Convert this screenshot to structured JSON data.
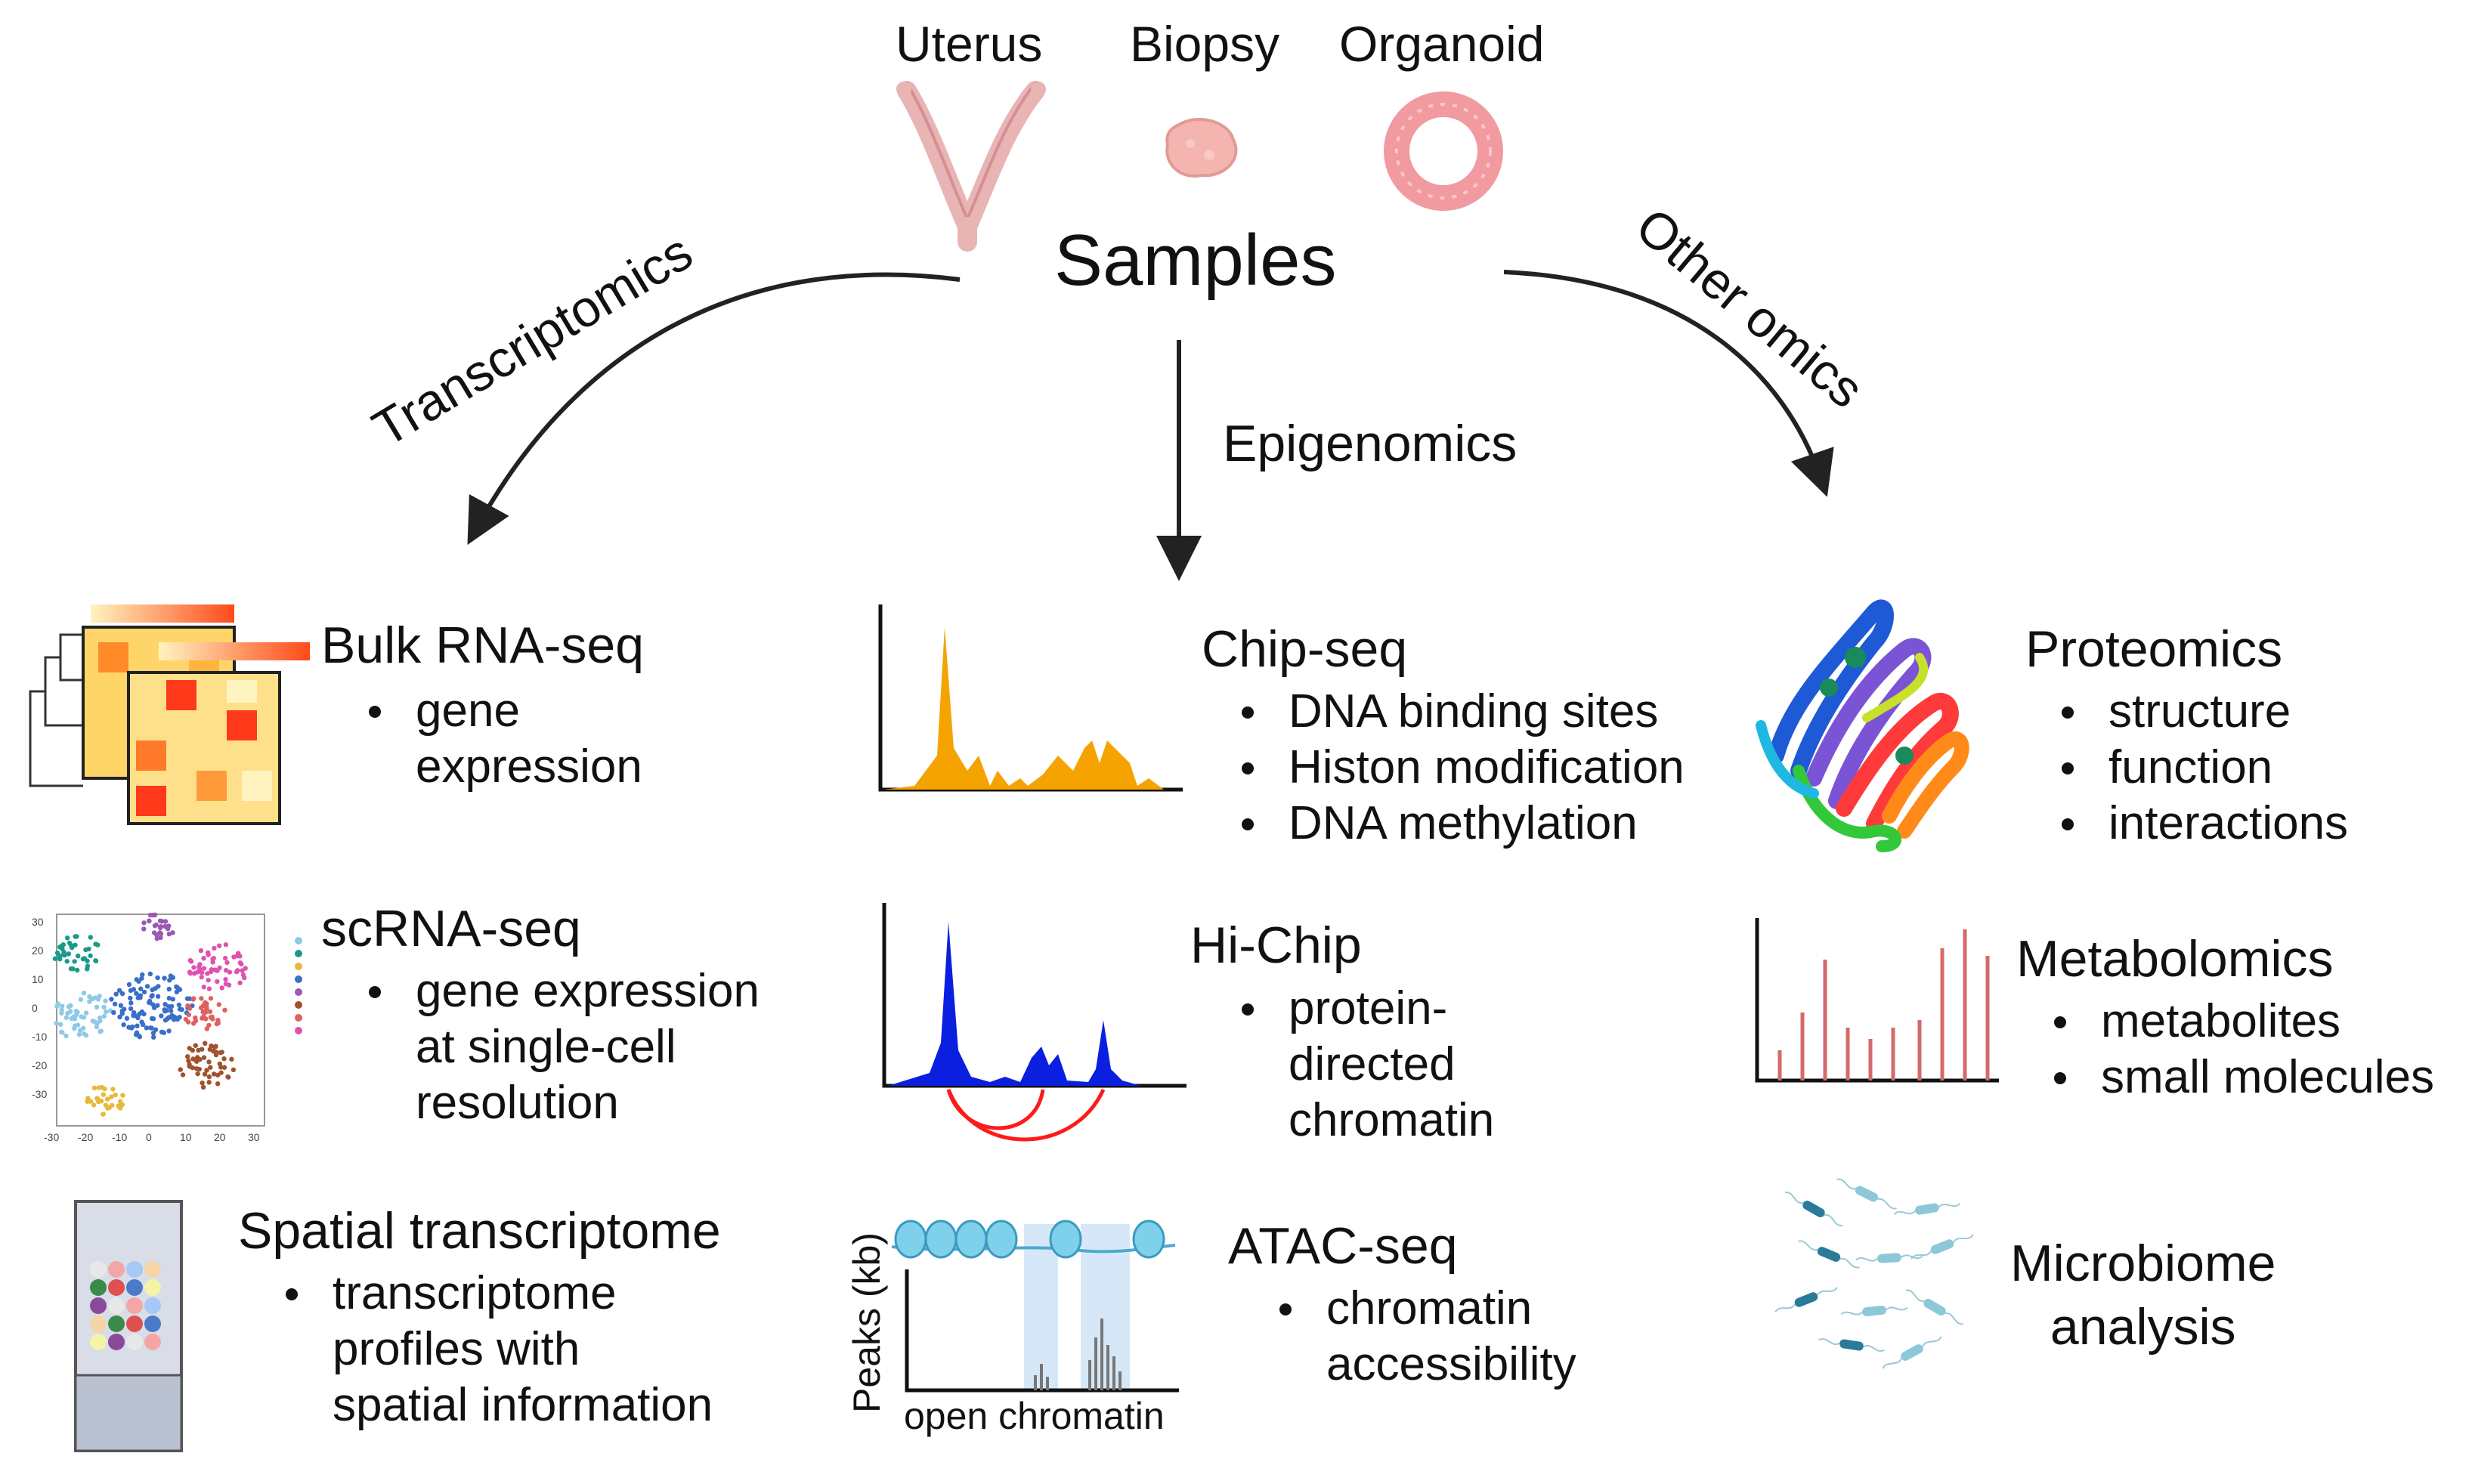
{
  "samples": {
    "title": "Samples",
    "items": [
      {
        "label": "Uterus"
      },
      {
        "label": "Biopsy"
      },
      {
        "label": "Organoid"
      }
    ]
  },
  "branches": {
    "left": "Transcriptomics",
    "center": "Epigenomics",
    "right": "Other omics"
  },
  "transcriptomics": [
    {
      "title": "Bulk RNA-seq",
      "bullets": [
        "gene\nexpression"
      ]
    },
    {
      "title": "scRNA-seq",
      "bullets": [
        "gene expression\nat single-cell\nresolution"
      ]
    },
    {
      "title": "Spatial transcriptome",
      "bullets": [
        "transcriptome\nprofiles with\nspatial information"
      ]
    }
  ],
  "epigenomics": [
    {
      "title": "Chip-seq",
      "bullets": [
        "DNA binding sites",
        "Histon modification",
        "DNA methylation"
      ]
    },
    {
      "title": "Hi-Chip",
      "bullets": [
        "protein-\ndirected\nchromatin"
      ]
    },
    {
      "title": "ATAC-seq",
      "bullets": [
        "chromatin\naccessibility"
      ]
    }
  ],
  "other_omics": [
    {
      "title": "Proteomics",
      "bullets": [
        "structure",
        "function",
        "interactions"
      ]
    },
    {
      "title": "Metabolomics",
      "bullets": [
        "metabolites",
        "small molecules"
      ]
    },
    {
      "title": "Microbiome\nanalysis",
      "bullets": []
    }
  ],
  "atac_plot": {
    "ylabel": "Peaks (kb)",
    "xlabel": "open chromatin"
  },
  "tsne_axis": {
    "y_ticks": [
      "30",
      "20",
      "10",
      "0",
      "-10",
      "-20",
      "-30"
    ],
    "x_ticks": [
      "-30",
      "-20",
      "-10",
      "0",
      "10",
      "20",
      "30"
    ]
  },
  "colors": {
    "arrow": "#222222",
    "chip_peaks": "#f5a300",
    "hichip_peaks": "#0a1fe0",
    "hichip_loops": "#ff1a1a",
    "uterus": "#e8b4b4",
    "metabolomics_bars": "#d46a6a",
    "atac_highlight": "#d6e8f7",
    "nucleosome": "#6fc0e0"
  }
}
